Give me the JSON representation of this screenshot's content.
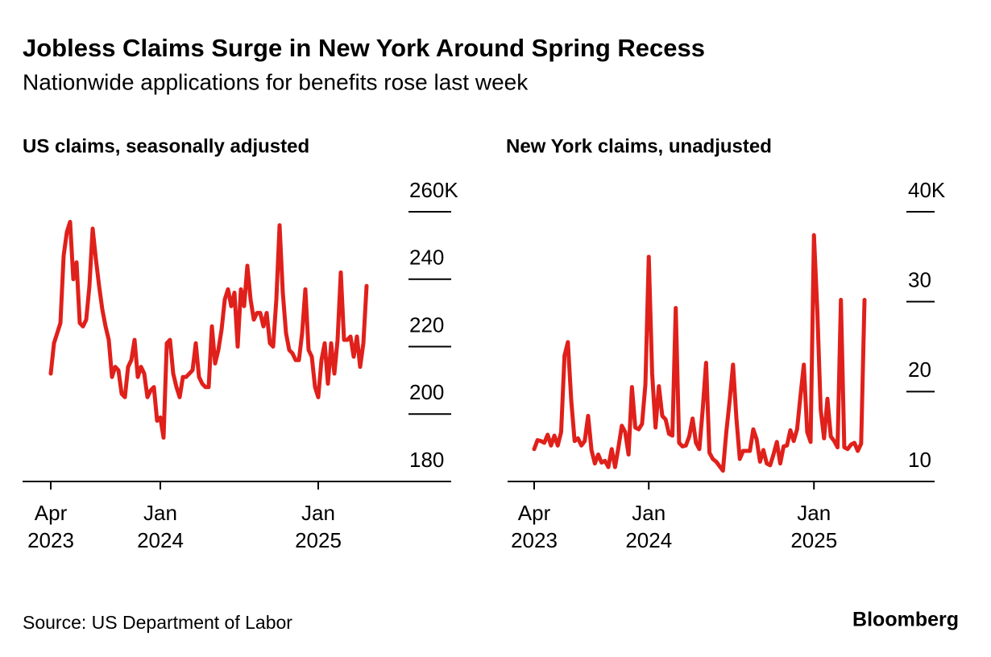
{
  "title": "Jobless Claims Surge in New York Around Spring Recess",
  "subtitle": "Nationwide applications for benefits rose last week",
  "source": "Source: US Department of Labor",
  "logo": "Bloomberg",
  "chart_data": [
    {
      "type": "line",
      "title": "US claims, seasonally adjusted",
      "categories": [
        "Apr 2023",
        null,
        null,
        null,
        null,
        null,
        null,
        null,
        null,
        null,
        null,
        null,
        null,
        null,
        null,
        null,
        null,
        null,
        null,
        null,
        null,
        null,
        null,
        null,
        null,
        null,
        null,
        null,
        null,
        null,
        null,
        null,
        null,
        null,
        "Jan 2024",
        null,
        null,
        null,
        null,
        null,
        null,
        null,
        null,
        null,
        null,
        null,
        null,
        null,
        null,
        null,
        null,
        null,
        null,
        null,
        null,
        null,
        null,
        null,
        null,
        null,
        null,
        null,
        null,
        null,
        null,
        null,
        null,
        null,
        null,
        null,
        null,
        null,
        null,
        null,
        null,
        null,
        null,
        null,
        null,
        null,
        null,
        null,
        null,
        "Jan 2025",
        null,
        null,
        null,
        null,
        null,
        null,
        null,
        null,
        null,
        null,
        null,
        null,
        null,
        null,
        null
      ],
      "series": [
        {
          "color": "#e0201b",
          "values": [
            212,
            221,
            224,
            227,
            247,
            254,
            257,
            240,
            245,
            227,
            226,
            228,
            238,
            255,
            246,
            238,
            231,
            226,
            222,
            211,
            214,
            213,
            206,
            205,
            214,
            216,
            222,
            211,
            214,
            212,
            205,
            207,
            208,
            198,
            199,
            193,
            221,
            222,
            212,
            208,
            205,
            211,
            211,
            212,
            213,
            221,
            211,
            209,
            208,
            208,
            226,
            215,
            219,
            225,
            234,
            237,
            232,
            236,
            220,
            237,
            232,
            244,
            234,
            228,
            230,
            230,
            226,
            230,
            221,
            220,
            234,
            256,
            236,
            224,
            219,
            218,
            216,
            216,
            224,
            237,
            219,
            217,
            208,
            205,
            216,
            221,
            209,
            221,
            212,
            222,
            242,
            222,
            222,
            223,
            217,
            223,
            214,
            221,
            238
          ]
        }
      ],
      "ylim": [
        180,
        260
      ],
      "yticks": [
        {
          "value": 260,
          "label": "260K"
        },
        240,
        220,
        200,
        180
      ]
    },
    {
      "type": "line",
      "title": "New York claims, unadjusted",
      "categories": [
        "Apr 2023",
        null,
        null,
        null,
        null,
        null,
        null,
        null,
        null,
        null,
        null,
        null,
        null,
        null,
        null,
        null,
        null,
        null,
        null,
        null,
        null,
        null,
        null,
        null,
        null,
        null,
        null,
        null,
        null,
        null,
        null,
        null,
        null,
        null,
        "Jan 2024",
        null,
        null,
        null,
        null,
        null,
        null,
        null,
        null,
        null,
        null,
        null,
        null,
        null,
        null,
        null,
        null,
        null,
        null,
        null,
        null,
        null,
        null,
        null,
        null,
        null,
        null,
        null,
        null,
        null,
        null,
        null,
        null,
        null,
        null,
        null,
        null,
        null,
        null,
        null,
        null,
        null,
        null,
        null,
        null,
        null,
        null,
        null,
        null,
        "Jan 2025",
        null,
        null,
        null,
        null,
        null,
        null,
        null,
        null,
        null,
        null,
        null,
        null,
        null,
        null,
        null
      ],
      "series": [
        {
          "color": "#e0201b",
          "values": [
            13.6,
            14.6,
            14.5,
            14.3,
            15.2,
            14.0,
            15.1,
            14.0,
            15.5,
            24.0,
            25.5,
            19.0,
            14.5,
            14.8,
            14.0,
            14.5,
            17.3,
            13.5,
            12.0,
            13.0,
            12.1,
            12.3,
            11.6,
            13.6,
            11.6,
            13.8,
            16.2,
            15.5,
            13.0,
            20.5,
            16.0,
            15.8,
            16.4,
            20.8,
            35.0,
            22.0,
            16.0,
            20.6,
            17.3,
            16.9,
            15.3,
            15.1,
            29.3,
            14.3,
            13.9,
            14.0,
            15.0,
            17.0,
            14.3,
            13.6,
            18.0,
            23.2,
            13.2,
            12.5,
            12.2,
            11.7,
            11.2,
            15.5,
            19.0,
            23.0,
            17.0,
            12.5,
            13.4,
            13.4,
            13.4,
            15.8,
            14.7,
            12.2,
            13.5,
            12.0,
            11.8,
            13.0,
            14.4,
            12.0,
            13.9,
            14.0,
            15.7,
            14.5,
            15.8,
            19.5,
            23.0,
            15.5,
            14.4,
            37.4,
            29.0,
            18.0,
            14.8,
            19.2,
            15.0,
            14.5,
            13.8,
            30.2,
            13.8,
            13.6,
            14.1,
            14.3,
            13.4,
            14.2,
            30.2
          ]
        }
      ],
      "ylim": [
        10,
        40
      ],
      "yticks": [
        {
          "value": 40,
          "label": "40K"
        },
        30,
        20,
        10
      ]
    }
  ]
}
